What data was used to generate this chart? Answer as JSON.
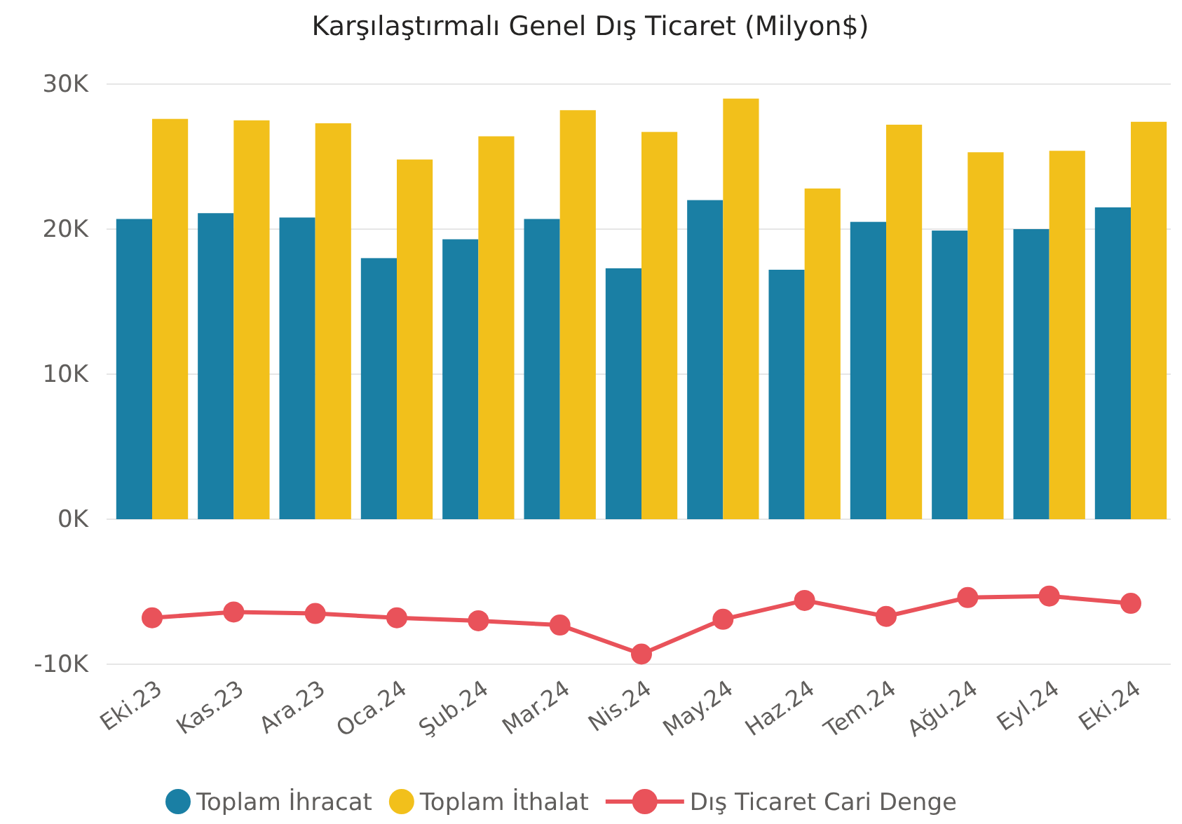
{
  "chart_data": {
    "type": "bar",
    "title": "Karşılaştırmalı Genel Dış Ticaret (Milyon$)",
    "categories": [
      "Eki.23",
      "Kas.23",
      "Ara.23",
      "Oca.24",
      "Şub.24",
      "Mar.24",
      "Nis.24",
      "May.24",
      "Haz.24",
      "Tem.24",
      "Ağu.24",
      "Eyl.24",
      "Eki.24"
    ],
    "series": [
      {
        "name": "Toplam İhracat",
        "color": "#1a7fa4",
        "values": [
          20700,
          21100,
          20800,
          18000,
          19300,
          20700,
          17300,
          22000,
          17200,
          20500,
          19900,
          20000,
          21500
        ]
      },
      {
        "name": "Toplam İthalat",
        "color": "#f2c01b",
        "values": [
          27600,
          27500,
          27300,
          24800,
          26400,
          28200,
          26700,
          29000,
          22800,
          27200,
          25300,
          25400,
          27400
        ]
      },
      {
        "name": "Dış Ticaret Cari Denge",
        "color": "#e9525a",
        "type": "line",
        "marker": "circle",
        "values": [
          -6800,
          -6400,
          -6500,
          -6800,
          -7000,
          -7300,
          -9300,
          -6900,
          -5600,
          -6700,
          -5400,
          -5300,
          -5800
        ]
      }
    ],
    "ylim": [
      -10000,
      30000
    ],
    "yticks": [
      {
        "value": -10000,
        "label": "-10K"
      },
      {
        "value": 0,
        "label": "0K"
      },
      {
        "value": 10000,
        "label": "10K"
      },
      {
        "value": 20000,
        "label": "20K"
      },
      {
        "value": 30000,
        "label": "30K"
      }
    ],
    "grid": "y",
    "legend": "bottom"
  }
}
